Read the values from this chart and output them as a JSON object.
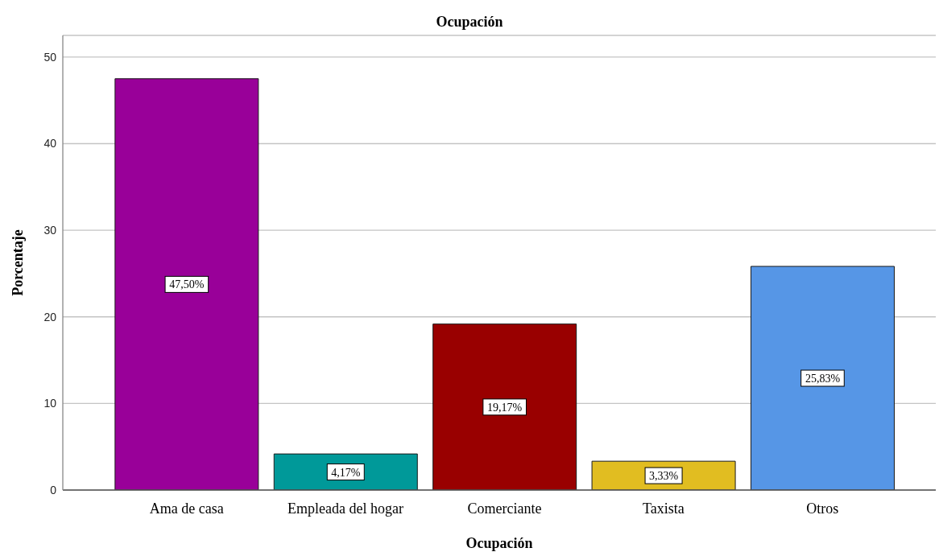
{
  "chart_data": {
    "type": "bar",
    "title": "Ocupación",
    "xlabel": "Ocupación",
    "ylabel": "Porcentaje",
    "categories": [
      "Ama de casa",
      "Empleada del hogar",
      "Comerciante",
      "Taxista",
      "Otros"
    ],
    "values": [
      47.5,
      4.17,
      19.17,
      3.33,
      25.83
    ],
    "colors": [
      "#990099",
      "#009999",
      "#990000",
      "#e1bd21",
      "#5696e6"
    ],
    "value_labels": [
      "47,50%",
      "4,17%",
      "19,17%",
      "3,33%",
      "25,83%"
    ],
    "ylim": [
      0,
      52.5
    ],
    "yticks": [
      0,
      10,
      20,
      30,
      40,
      50
    ],
    "grid": "y"
  }
}
